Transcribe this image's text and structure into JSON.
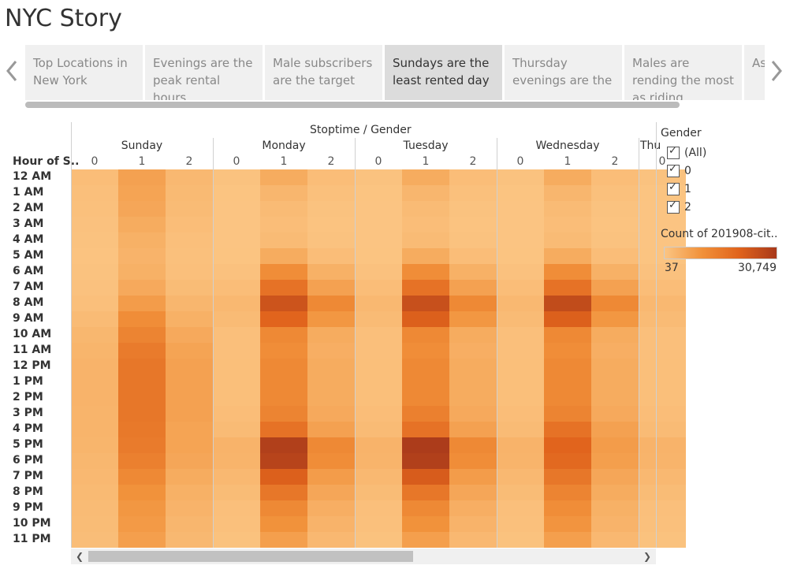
{
  "title": "NYC Story",
  "story_points": [
    {
      "label": "Top Locations in New York"
    },
    {
      "label": "Evenings are the peak rental hours"
    },
    {
      "label": "Male subscribers are the target"
    },
    {
      "label": "Sundays are the least rented day"
    },
    {
      "label": "Thursday evenings are the"
    },
    {
      "label": "Males are rending the most as riding"
    },
    {
      "label": "As inc"
    }
  ],
  "active_story_index": 3,
  "heatmap": {
    "column_header": "Stoptime / Gender",
    "row_header": "Hour of S..",
    "days": [
      "Sunday",
      "Monday",
      "Tuesday",
      "Wednesday",
      "Thu"
    ],
    "genders": [
      "0",
      "1",
      "2"
    ],
    "hours": [
      "12 AM",
      "1 AM",
      "2 AM",
      "3 AM",
      "4 AM",
      "5 AM",
      "6 AM",
      "7 AM",
      "8 AM",
      "9 AM",
      "10 AM",
      "11 AM",
      "12 PM",
      "1 PM",
      "2 PM",
      "3 PM",
      "4 PM",
      "5 PM",
      "6 PM",
      "7 PM",
      "8 PM",
      "9 PM",
      "10 PM",
      "11 PM"
    ]
  },
  "chart_data": {
    "type": "heatmap",
    "title": "",
    "x_header": "Stoptime / Gender",
    "y_header": "Hour of S..",
    "measure": "Count of 201908-cit..",
    "color_range": [
      37,
      30749
    ],
    "columns": [
      "Sunday 0",
      "Sunday 1",
      "Sunday 2",
      "Monday 0",
      "Monday 1",
      "Monday 2",
      "Tuesday 0",
      "Tuesday 1",
      "Tuesday 2",
      "Wednesday 0",
      "Wednesday 1",
      "Wednesday 2",
      "Thu 0"
    ],
    "rows": [
      "12 AM",
      "1 AM",
      "2 AM",
      "3 AM",
      "4 AM",
      "5 AM",
      "6 AM",
      "7 AM",
      "8 AM",
      "9 AM",
      "10 AM",
      "11 AM",
      "12 PM",
      "1 PM",
      "2 PM",
      "3 PM",
      "4 PM",
      "5 PM",
      "6 PM",
      "7 PM",
      "8 PM",
      "9 PM",
      "10 PM",
      "11 PM"
    ],
    "values": [
      [
        1500,
        7000,
        2500,
        600,
        5000,
        1500,
        600,
        5000,
        1500,
        600,
        5000,
        1500,
        600
      ],
      [
        1200,
        6500,
        2200,
        300,
        3000,
        1000,
        300,
        3000,
        1000,
        300,
        3000,
        1000,
        300
      ],
      [
        1000,
        6000,
        2000,
        200,
        2000,
        600,
        200,
        2000,
        600,
        200,
        2000,
        600,
        200
      ],
      [
        800,
        5000,
        1500,
        150,
        1500,
        500,
        150,
        1500,
        500,
        150,
        1500,
        500,
        150
      ],
      [
        600,
        4000,
        1200,
        150,
        2000,
        600,
        150,
        2000,
        600,
        150,
        2000,
        600,
        150
      ],
      [
        500,
        3500,
        1000,
        300,
        5000,
        1500,
        300,
        5000,
        1500,
        300,
        5000,
        1500,
        300
      ],
      [
        600,
        4000,
        1200,
        800,
        11000,
        4000,
        800,
        11000,
        4000,
        800,
        11000,
        4000,
        800
      ],
      [
        800,
        5500,
        1800,
        1500,
        17000,
        7000,
        1500,
        17000,
        7000,
        1500,
        17000,
        7000,
        1500
      ],
      [
        1200,
        8000,
        3000,
        2500,
        24000,
        12000,
        2500,
        25000,
        12000,
        2500,
        26000,
        12000,
        2500
      ],
      [
        2000,
        11000,
        4000,
        2000,
        20000,
        9000,
        2000,
        21000,
        9000,
        2000,
        21000,
        9000,
        2000
      ],
      [
        2800,
        13000,
        5500,
        1200,
        12000,
        5000,
        1200,
        12000,
        5000,
        1200,
        12000,
        5000,
        1200
      ],
      [
        3200,
        15000,
        6500,
        1200,
        11000,
        4500,
        1200,
        11000,
        4500,
        1200,
        11000,
        4500,
        1200
      ],
      [
        3500,
        16000,
        7000,
        1300,
        12000,
        5000,
        1300,
        12000,
        5000,
        1300,
        12000,
        5000,
        1300
      ],
      [
        3500,
        16000,
        7000,
        1300,
        12000,
        5000,
        1300,
        12000,
        5000,
        1300,
        12000,
        5000,
        1300
      ],
      [
        3500,
        16000,
        7000,
        1300,
        12000,
        5000,
        1300,
        12000,
        5000,
        1300,
        12000,
        5000,
        1300
      ],
      [
        3400,
        16000,
        7000,
        1500,
        13000,
        5500,
        1500,
        14000,
        5500,
        1500,
        13000,
        5500,
        1500
      ],
      [
        3300,
        15500,
        6500,
        2000,
        17000,
        7000,
        2000,
        17000,
        7000,
        2000,
        17000,
        7000,
        2000
      ],
      [
        3200,
        15000,
        6500,
        3500,
        29000,
        12000,
        3500,
        30000,
        12000,
        3500,
        20000,
        8000,
        3500
      ],
      [
        2800,
        14000,
        6000,
        3300,
        28000,
        11000,
        3300,
        29000,
        11000,
        3300,
        19000,
        7500,
        3300
      ],
      [
        2500,
        12000,
        5000,
        2500,
        21000,
        8000,
        2500,
        22000,
        8000,
        2500,
        16000,
        6000,
        2500
      ],
      [
        2200,
        10000,
        4000,
        1800,
        16000,
        6000,
        1800,
        16000,
        6000,
        1800,
        13000,
        5000,
        1800
      ],
      [
        2000,
        9000,
        3500,
        1200,
        12000,
        4500,
        1200,
        12000,
        4500,
        1200,
        11000,
        4000,
        1200
      ],
      [
        1800,
        8500,
        3000,
        1000,
        10000,
        3500,
        1000,
        10000,
        3500,
        1000,
        9500,
        3500,
        1000
      ],
      [
        1600,
        7500,
        2600,
        700,
        7500,
        2500,
        700,
        7500,
        2500,
        700,
        7500,
        2500,
        700
      ]
    ]
  },
  "legend": {
    "filter_title": "Gender",
    "filter_items": [
      "(All)",
      "0",
      "1",
      "2"
    ],
    "color_title": "Count of 201908-cit..",
    "color_min_label": "37",
    "color_max_label": "30,749"
  },
  "colors": {
    "low": "#fbc583",
    "high": "#a8391b",
    "active_tab": "#dcdcdc",
    "inactive_tab": "#f0f0f0"
  },
  "icons": {
    "prev": "chevron-left-icon",
    "next": "chevron-right-icon"
  }
}
